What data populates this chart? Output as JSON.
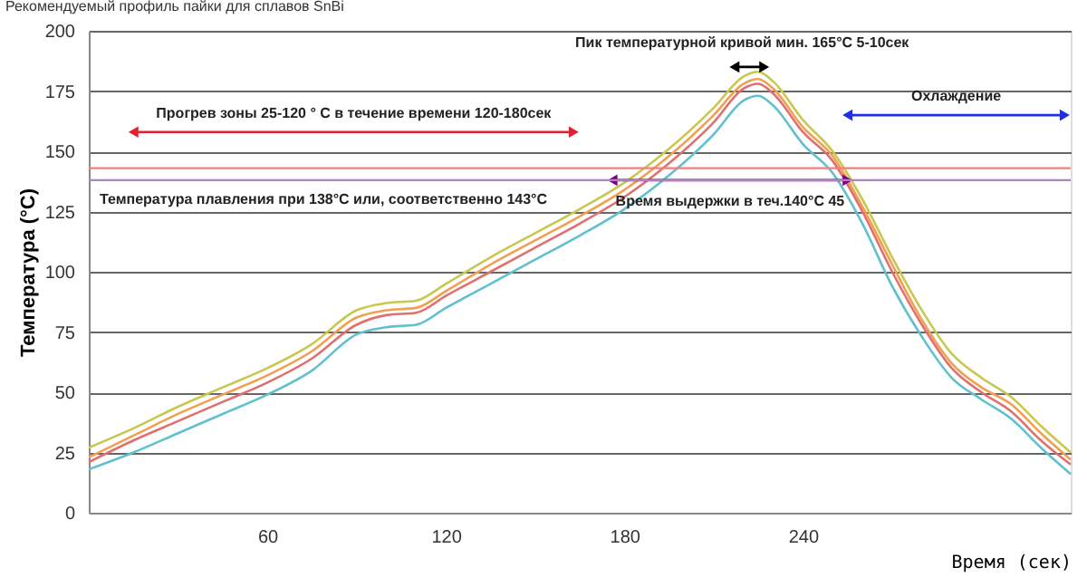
{
  "chart_data": {
    "type": "line",
    "title": "Рекомендуемый профиль пайки для сплавов SnBi",
    "xlabel": "Время (сек)",
    "ylabel": "Температура (°C)",
    "xlim": [
      0,
      330
    ],
    "xticks": [
      60,
      120,
      180,
      240
    ],
    "ylim": [
      0,
      200
    ],
    "yticks": [
      0,
      25,
      50,
      75,
      100,
      125,
      150,
      175,
      200
    ],
    "grid": "y",
    "x": [
      0,
      15,
      30,
      45,
      60,
      75,
      90,
      100,
      110,
      120,
      135,
      150,
      165,
      180,
      195,
      210,
      220,
      225,
      230,
      240,
      250,
      260,
      270,
      280,
      290,
      300,
      310,
      320,
      330
    ],
    "series": [
      {
        "color": "#c8c850",
        "values": [
          27,
          35,
          44,
          52,
          60,
          70,
          84,
          87,
          88,
          95,
          106,
          116,
          126,
          137,
          151,
          168,
          181,
          183,
          179,
          163,
          150,
          130,
          106,
          84,
          66,
          56,
          48,
          36,
          25
        ]
      },
      {
        "color": "#f0a050",
        "values": [
          23,
          32,
          41,
          49,
          57,
          67,
          81,
          84,
          85,
          92,
          103,
          113,
          123,
          134,
          148,
          165,
          178,
          180,
          176,
          160,
          148,
          127,
          103,
          80,
          62,
          52,
          45,
          33,
          22
        ]
      },
      {
        "color": "#e07070",
        "values": [
          21,
          30,
          38,
          46,
          54,
          64,
          78,
          82,
          83,
          90,
          100,
          110,
          120,
          131,
          145,
          162,
          176,
          178,
          174,
          158,
          146,
          125,
          100,
          78,
          60,
          50,
          42,
          30,
          20
        ]
      },
      {
        "color": "#60c0d0",
        "values": [
          18,
          25,
          33,
          41,
          49,
          59,
          74,
          77,
          78,
          85,
          95,
          105,
          115,
          126,
          140,
          157,
          171,
          173,
          169,
          153,
          141,
          120,
          94,
          73,
          56,
          47,
          39,
          27,
          16
        ]
      },
      {
        "type": "line",
        "marker": "triangle",
        "color": "#e02030",
        "x": [
          15,
          163
        ],
        "values": [
          158,
          158
        ]
      },
      {
        "type": "line",
        "marker": "triangle",
        "color": "#800080",
        "x": [
          176,
          255
        ],
        "values": [
          138,
          138
        ]
      },
      {
        "type": "line",
        "marker": "triangle",
        "color": "#2030e0",
        "x": [
          255,
          328
        ],
        "values": [
          165,
          165
        ]
      },
      {
        "type": "line",
        "marker": "triangle",
        "color": "#000000",
        "x": [
          217,
          227
        ],
        "values": [
          185,
          185
        ]
      }
    ],
    "ref_lines": [
      {
        "axis": "y",
        "value": 143,
        "color": "#f08080"
      },
      {
        "axis": "y",
        "value": 138,
        "color": "#b080c0"
      }
    ],
    "annotations": [
      "Прогрев зоны 25-120 ° C в течение времени 120-180сек",
      "Температура плавления при 138°С или, соответственно 143°С",
      "Пик температурной кривой мин. 165°С 5-10сек",
      "Охлаждение",
      "Время выдержки в теч.140°С 45"
    ]
  }
}
